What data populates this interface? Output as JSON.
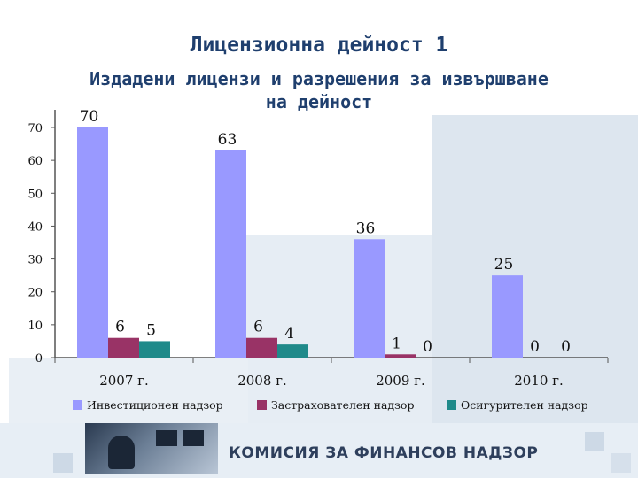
{
  "header": {
    "title": "Лицензионна дейност 1",
    "subtitle_line1": "Издадени лицензи и разрешения за извършване",
    "subtitle_line2": "на дейност"
  },
  "footer": {
    "organization": "КОМИСИЯ ЗА ФИНАНСОВ НАДЗОР"
  },
  "chart_data": {
    "type": "bar",
    "categories": [
      "2007 г.",
      "2008 г.",
      "2009 г.",
      "2010 г."
    ],
    "series": [
      {
        "name": "Инвестиционен надзор",
        "values": [
          70,
          63,
          36,
          25
        ],
        "color": "#9999ff"
      },
      {
        "name": "Застрахователен надзор",
        "values": [
          6,
          6,
          1,
          0
        ],
        "color": "#993366"
      },
      {
        "name": "Осигурителен надзор",
        "values": [
          5,
          4,
          0,
          0
        ],
        "color": "#1f8a8a"
      }
    ],
    "yticks": [
      "0",
      "10",
      "20",
      "30",
      "40",
      "50",
      "60",
      "70"
    ],
    "ylim": [
      0,
      70
    ],
    "grid": false,
    "legend": "bottom"
  }
}
